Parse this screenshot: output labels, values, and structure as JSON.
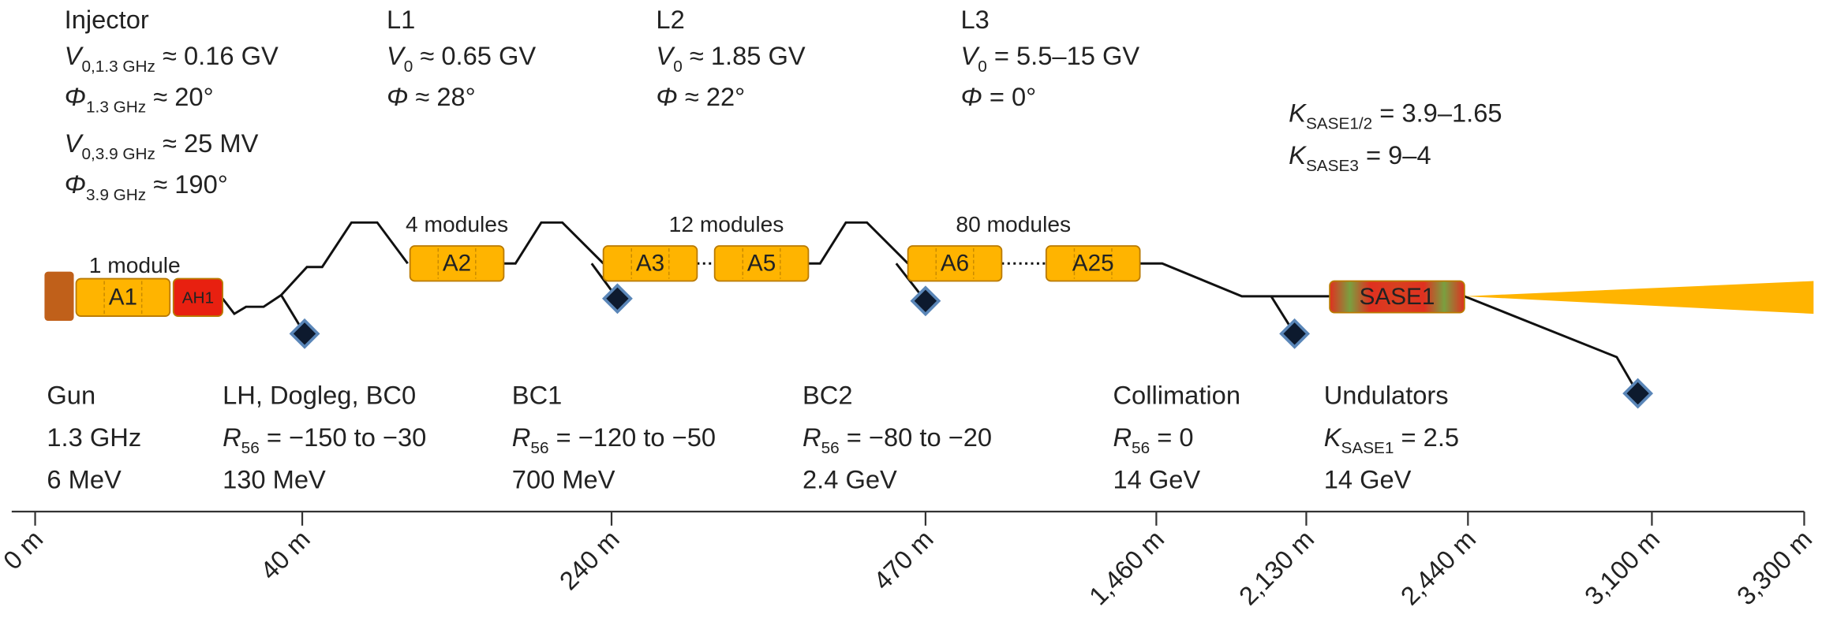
{
  "parameters": [
    {
      "title": "Injector",
      "lines": [
        {
          "symbol": "V",
          "sub": "0,1.3 GHz",
          "text": " ≈ 0.16 GV"
        },
        {
          "symbol": "Φ",
          "sub": "1.3 GHz",
          "text": " ≈ 20°"
        },
        {
          "symbol": "V",
          "sub": "0,3.9 GHz",
          "text": " ≈ 25 MV"
        },
        {
          "symbol": "Φ",
          "sub": "3.9 GHz",
          "text": " ≈ 190°"
        }
      ]
    },
    {
      "title": "L1",
      "lines": [
        {
          "symbol": "V",
          "sub": "0",
          "text": " ≈ 0.65 GV"
        },
        {
          "symbol": "Φ",
          "text": " ≈ 28°"
        }
      ]
    },
    {
      "title": "L2",
      "lines": [
        {
          "symbol": "V",
          "sub": "0",
          "text": " ≈ 1.85 GV"
        },
        {
          "symbol": "Φ",
          "text": " ≈ 22°"
        }
      ]
    },
    {
      "title": "L3",
      "lines": [
        {
          "symbol": "V",
          "sub": "0",
          "text": " = 5.5–15 GV"
        },
        {
          "symbol": "Φ",
          "text": " = 0°"
        }
      ]
    }
  ],
  "undulator_k": [
    {
      "symbol": "K",
      "sub": "SASE1/2",
      "text": " = 3.9–1.65"
    },
    {
      "symbol": "K",
      "sub": "SASE3",
      "text": " = 9–4"
    }
  ],
  "modules": [
    "1 module",
    "4 modules",
    "12 modules",
    "80 modules"
  ],
  "components": [
    "A1",
    "AH1",
    "A2",
    "A3",
    "A5",
    "A6",
    "A25",
    "SASE1"
  ],
  "sections": [
    {
      "lines": [
        {
          "text": "Gun"
        },
        {
          "text": "1.3 GHz"
        },
        {
          "text": "6 MeV"
        }
      ]
    },
    {
      "lines": [
        {
          "text": "LH, Dogleg, BC0"
        },
        {
          "symbol": "R",
          "sub": "56",
          "text": " = −150 to −30"
        },
        {
          "text": "130 MeV"
        }
      ]
    },
    {
      "lines": [
        {
          "text": "BC1"
        },
        {
          "symbol": "R",
          "sub": "56",
          "text": " = −120 to −50"
        },
        {
          "text": "700 MeV"
        }
      ]
    },
    {
      "lines": [
        {
          "text": "BC2"
        },
        {
          "symbol": "R",
          "sub": "56",
          "text": " = −80 to −20"
        },
        {
          "text": "2.4 GeV"
        }
      ]
    },
    {
      "lines": [
        {
          "text": "Collimation"
        },
        {
          "symbol": "R",
          "sub": "56",
          "text": " = 0"
        },
        {
          "text": "14 GeV"
        }
      ]
    },
    {
      "lines": [
        {
          "text": "Undulators"
        },
        {
          "symbol": "K",
          "sub": "SASE1",
          "text": " = 2.5"
        },
        {
          "text": "14 GeV"
        }
      ]
    }
  ],
  "axis_labels": [
    "0 m",
    "40 m",
    "240 m",
    "470 m",
    "1,460 m",
    "2,130 m",
    "2,440 m",
    "3,100 m",
    "3,300 m"
  ]
}
